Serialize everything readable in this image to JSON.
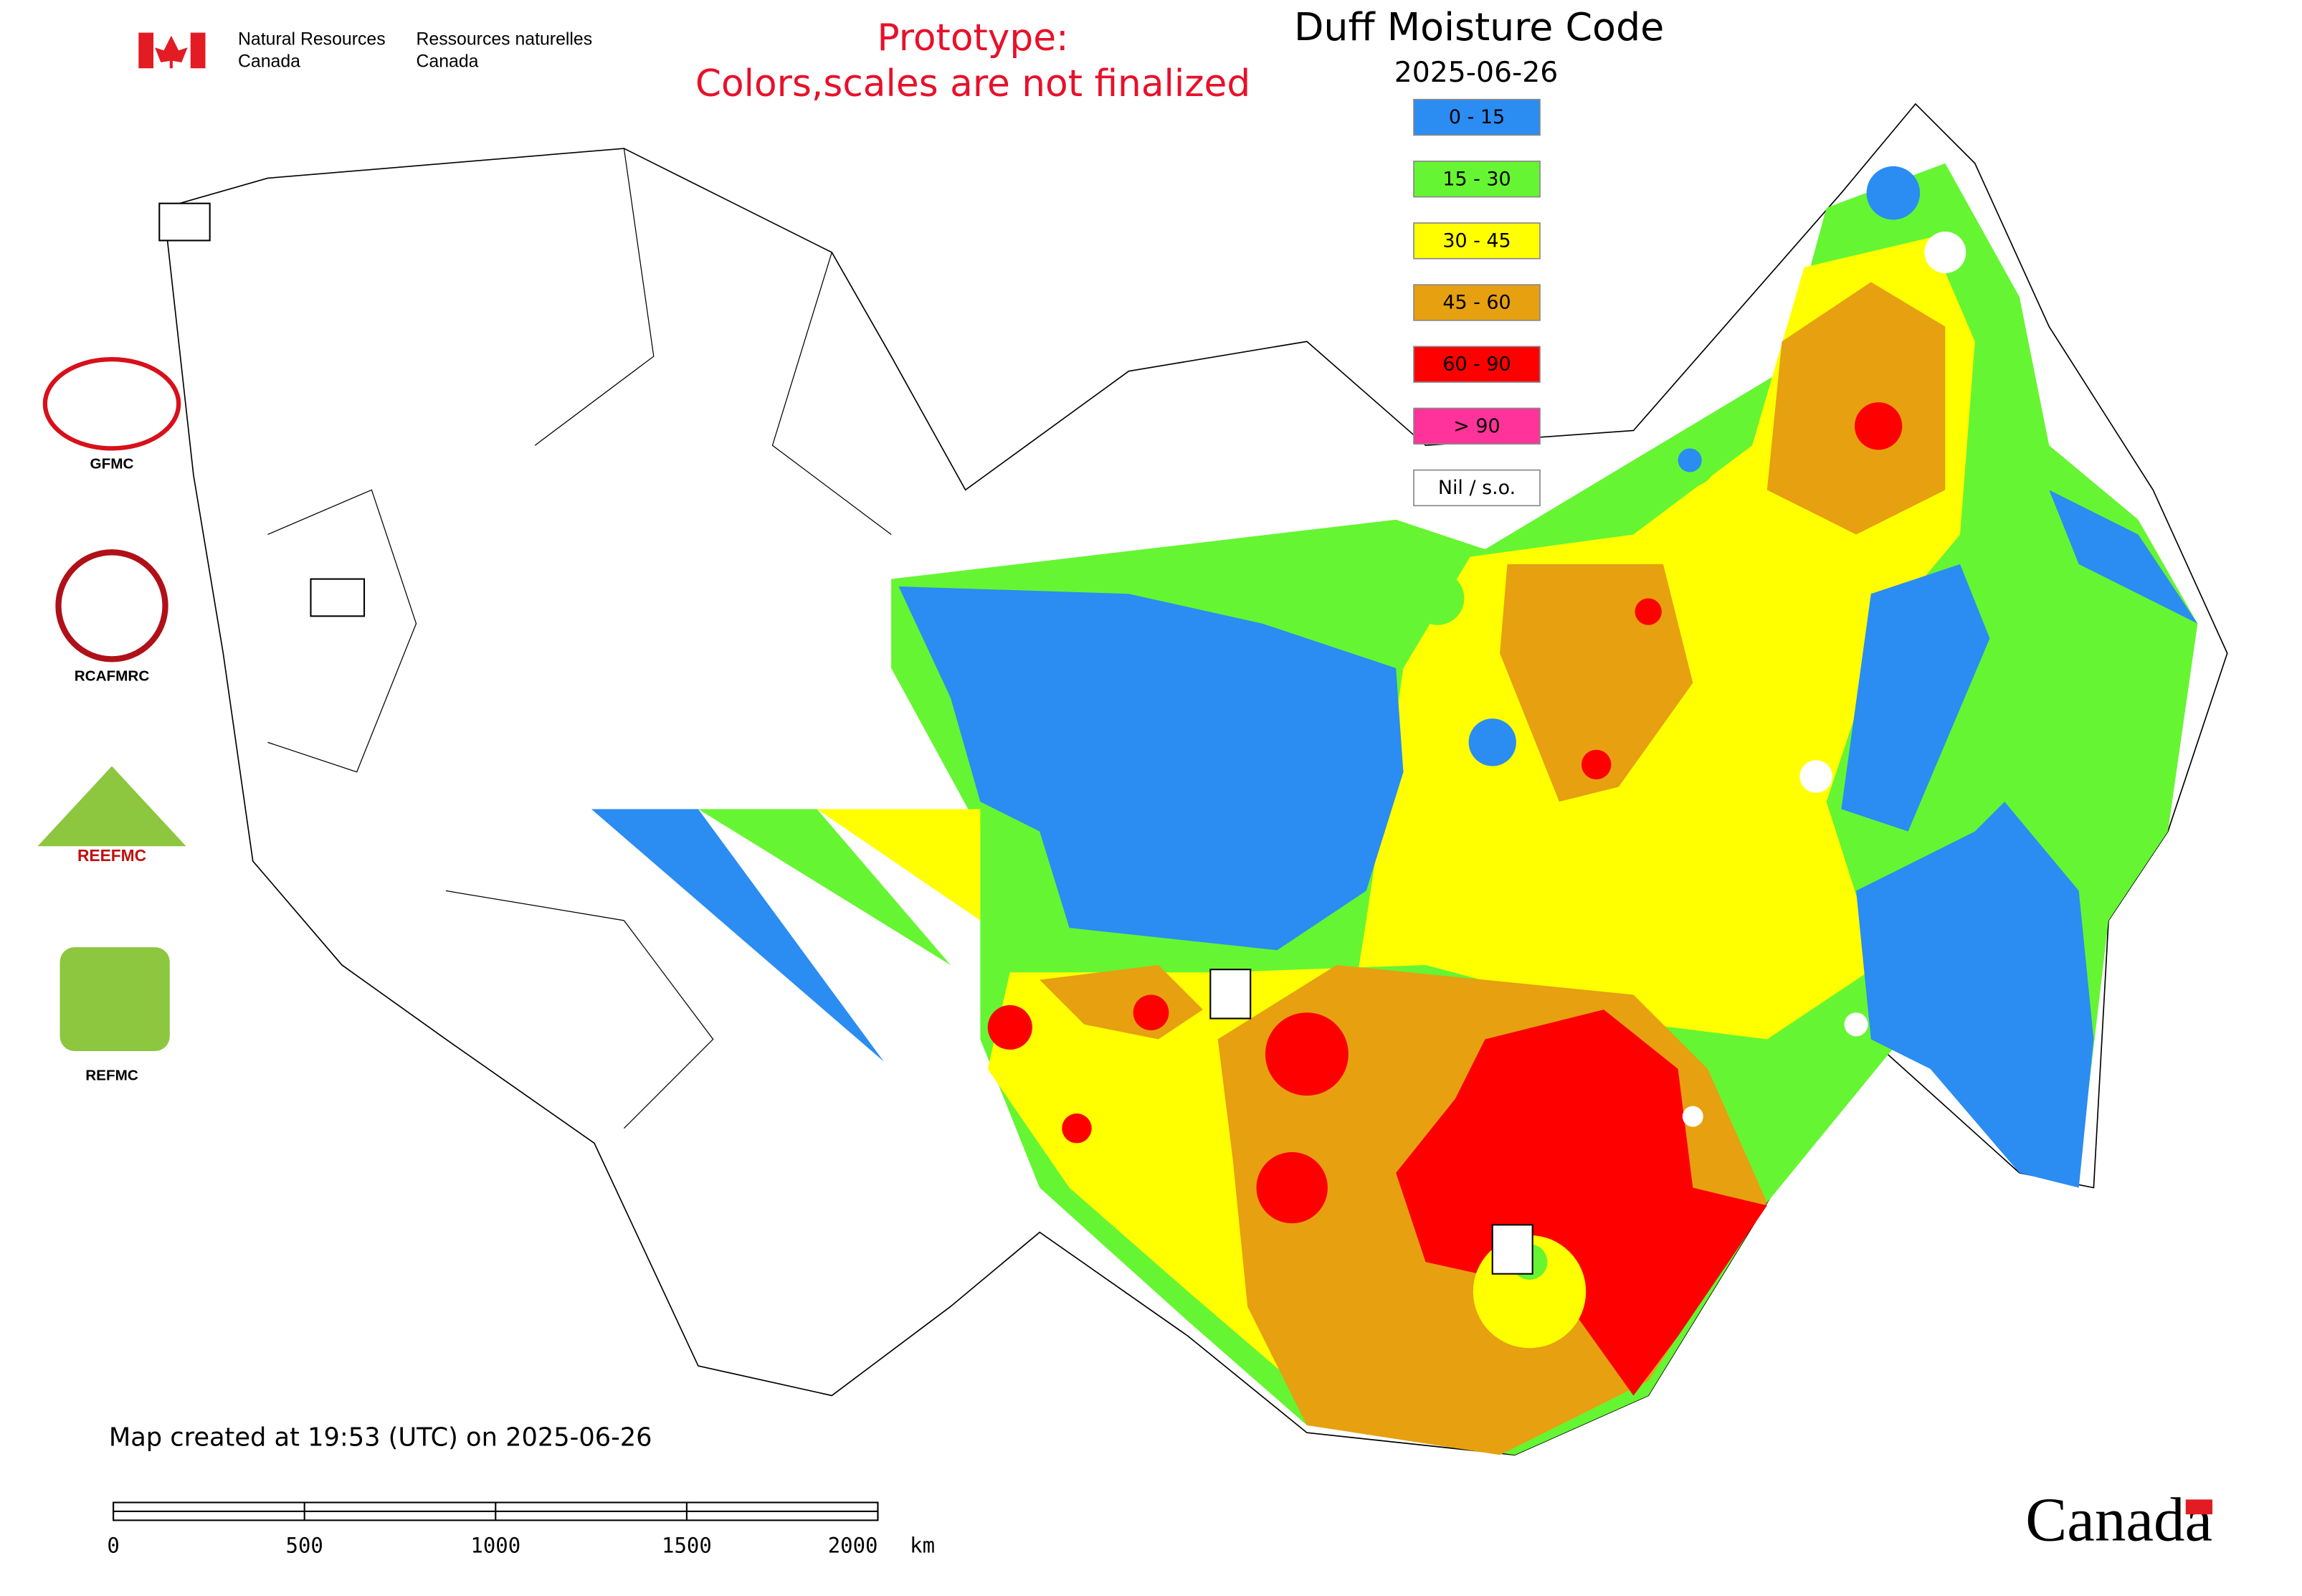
{
  "header": {
    "department_en": [
      "Natural Resources",
      "Canada"
    ],
    "department_fr": [
      "Ressources naturelles",
      "Canada"
    ],
    "notice": [
      "Prototype:",
      "Colors,scales are not finalized"
    ]
  },
  "map": {
    "title": "Duff Moisture Code",
    "date": "2025-06-26",
    "legend": [
      {
        "label": "0 - 15",
        "color": "#2b8cf2"
      },
      {
        "label": "15 - 30",
        "color": "#66f532"
      },
      {
        "label": "30 - 45",
        "color": "#ffff00"
      },
      {
        "label": "45 - 60",
        "color": "#e6a010"
      },
      {
        "label": "60 - 90",
        "color": "#ff0000"
      },
      {
        "label": "> 90",
        "color": "#ff3399"
      },
      {
        "label": "Nil / s.o.",
        "color": "#ffffff"
      }
    ],
    "logos": [
      "GFMC",
      "RCAFMRC",
      "REEFMC",
      "REFMC"
    ],
    "footer": "Map created at 19:53 (UTC) on 2025-06-26",
    "scale_bar": {
      "labels": [
        "0",
        "500",
        "1000",
        "1500",
        "2000"
      ],
      "unit": "km"
    },
    "wordmark": "Canada"
  }
}
